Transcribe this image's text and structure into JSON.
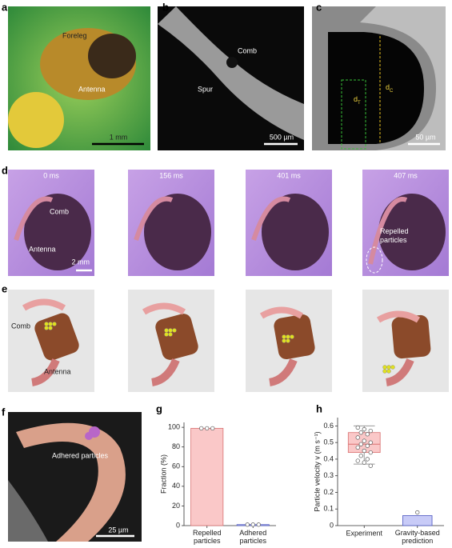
{
  "figure": {
    "panels": {
      "a": {
        "letter": "a",
        "labels": [
          "Foreleg",
          "Antenna"
        ],
        "scale_bar": "1 mm"
      },
      "b": {
        "letter": "b",
        "labels": [
          "Comb",
          "Spur"
        ],
        "scale_bar": "500 µm"
      },
      "c": {
        "letter": "c",
        "symbols": [
          {
            "symbol": "d",
            "subscript": "C"
          },
          {
            "symbol": "d",
            "subscript": "T"
          }
        ],
        "scale_bar": "50 µm"
      },
      "d": {
        "letter": "d",
        "times": [
          "0 ms",
          "156 ms",
          "401 ms",
          "407 ms"
        ],
        "labels": [
          "Comb",
          "Antenna",
          "Repelled particles"
        ],
        "scale_bar": "2 mm"
      },
      "e": {
        "letter": "e",
        "labels": [
          "Comb",
          "Antenna"
        ]
      },
      "f": {
        "letter": "f",
        "labels": [
          "Adhered particles"
        ],
        "scale_bar": "25 µm"
      }
    }
  },
  "chart_data": [
    {
      "label": "g",
      "type": "bar",
      "categories": [
        "Repelled particles",
        "Adhered particles"
      ],
      "values": [
        99,
        1
      ],
      "colors": [
        "#fac8c8",
        "#c8cbf7"
      ],
      "edge_colors": [
        "#d97070",
        "#4a55c0"
      ],
      "points": [
        [
          99,
          99,
          99
        ],
        [
          1,
          1,
          1
        ]
      ],
      "ylabel": "Fraction (%)",
      "ylim": [
        0,
        105
      ],
      "yticks": [
        0,
        20,
        40,
        60,
        80,
        100
      ]
    },
    {
      "label": "h",
      "type": "box",
      "categories": [
        "Experiment",
        "Gravity-based prediction"
      ],
      "box": {
        "whislo": 0.37,
        "q1": 0.44,
        "median": 0.49,
        "q3": 0.56,
        "whishi": 0.6
      },
      "box_color": "#fac8c8",
      "points": [
        0.59,
        0.58,
        0.57,
        0.56,
        0.55,
        0.53,
        0.51,
        0.5,
        0.49,
        0.48,
        0.47,
        0.45,
        0.44,
        0.42,
        0.4,
        0.39,
        0.38,
        0.36
      ],
      "bar_value": 0.06,
      "bar_color": "#c8cbf7",
      "bar_point": 0.06,
      "ylabel": "Particle velocity v (m s⁻¹)",
      "ylim": [
        0,
        0.65
      ],
      "yticks": [
        0,
        0.1,
        0.2,
        0.3,
        0.4,
        0.5,
        0.6
      ]
    }
  ]
}
